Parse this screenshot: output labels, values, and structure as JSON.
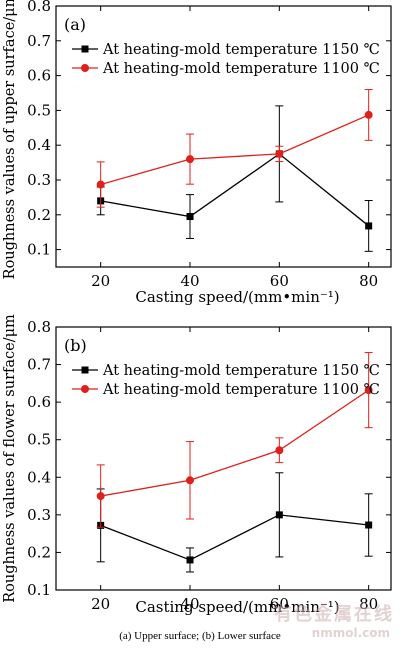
{
  "chart_data": [
    {
      "type": "line",
      "panel_label": "(a)",
      "xlabel": "Casting speed/(mm•min⁻¹)",
      "ylabel": "Roughness values of upper surface/μm",
      "x": [
        20,
        40,
        60,
        80
      ],
      "xticks": [
        "20",
        "40",
        "60",
        "80"
      ],
      "yticks": [
        "0.1",
        "0.2",
        "0.3",
        "0.4",
        "0.5",
        "0.6",
        "0.7",
        "0.8"
      ],
      "xlim": [
        10,
        85
      ],
      "ylim": [
        0.05,
        0.8
      ],
      "legend_position": "top-left",
      "series": [
        {
          "name": "At heating-mold temperature 1150 ℃",
          "color": "#000000",
          "marker": "square",
          "values": [
            0.24,
            0.195,
            0.375,
            0.168
          ],
          "errors": [
            0.04,
            0.063,
            0.138,
            0.073
          ]
        },
        {
          "name": "At heating-mold temperature 1100 ℃",
          "color": "#e0201b",
          "marker": "circle",
          "values": [
            0.287,
            0.36,
            0.375,
            0.487
          ],
          "errors": [
            0.065,
            0.072,
            0.022,
            0.073
          ]
        }
      ]
    },
    {
      "type": "line",
      "panel_label": "(b)",
      "xlabel": "Casting speed/(mm•min⁻¹)",
      "ylabel": "Roughness values of flower surface/μm",
      "x": [
        20,
        40,
        60,
        80
      ],
      "xticks": [
        "20",
        "40",
        "60",
        "80"
      ],
      "yticks": [
        "0.1",
        "0.2",
        "0.3",
        "0.4",
        "0.5",
        "0.6",
        "0.7",
        "0.8"
      ],
      "xlim": [
        10,
        85
      ],
      "ylim": [
        0.1,
        0.8
      ],
      "legend_position": "top-left",
      "series": [
        {
          "name": "At heating-mold temperature 1150 ℃",
          "color": "#000000",
          "marker": "square",
          "values": [
            0.272,
            0.18,
            0.3,
            0.273
          ],
          "errors": [
            0.097,
            0.032,
            0.112,
            0.083
          ]
        },
        {
          "name": "At heating-mold temperature 1100 ℃",
          "color": "#e0201b",
          "marker": "circle",
          "values": [
            0.35,
            0.392,
            0.472,
            0.632
          ],
          "errors": [
            0.083,
            0.103,
            0.033,
            0.1
          ]
        }
      ]
    }
  ],
  "caption": "(a) Upper surface; (b) Lower surface",
  "watermark": {
    "main": "有色金属在线",
    "sub": "nmmol.com"
  }
}
